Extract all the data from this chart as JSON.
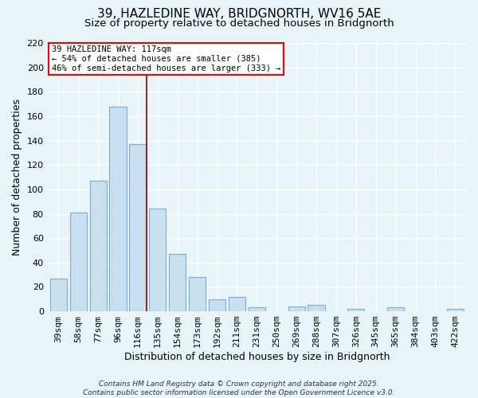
{
  "title": "39, HAZLEDINE WAY, BRIDGNORTH, WV16 5AE",
  "subtitle": "Size of property relative to detached houses in Bridgnorth",
  "xlabel": "Distribution of detached houses by size in Bridgnorth",
  "ylabel": "Number of detached properties",
  "categories": [
    "39sqm",
    "58sqm",
    "77sqm",
    "96sqm",
    "116sqm",
    "135sqm",
    "154sqm",
    "173sqm",
    "192sqm",
    "211sqm",
    "231sqm",
    "250sqm",
    "269sqm",
    "288sqm",
    "307sqm",
    "326sqm",
    "345sqm",
    "365sqm",
    "384sqm",
    "403sqm",
    "422sqm"
  ],
  "values": [
    27,
    81,
    107,
    168,
    137,
    84,
    47,
    28,
    10,
    12,
    3,
    0,
    4,
    5,
    0,
    2,
    0,
    3,
    0,
    0,
    2
  ],
  "bar_color": "#c8dff0",
  "bar_edge_color": "#7ab0cc",
  "vline_color": "#8b0000",
  "vline_x_index": 4,
  "annotation_box": {
    "text_line1": "39 HAZLEDINE WAY: 117sqm",
    "text_line2": "← 54% of detached houses are smaller (385)",
    "text_line3": "46% of semi-detached houses are larger (333) →",
    "box_color": "white",
    "box_edge_color": "red"
  },
  "footer_line1": "Contains HM Land Registry data © Crown copyright and database right 2025.",
  "footer_line2": "Contains public sector information licensed under the Open Government Licence v3.0.",
  "ylim": [
    0,
    220
  ],
  "yticks": [
    0,
    20,
    40,
    60,
    80,
    100,
    120,
    140,
    160,
    180,
    200,
    220
  ],
  "background_color": "#e8f4f8",
  "grid_color": "#ffffff",
  "title_fontsize": 11,
  "subtitle_fontsize": 9.5,
  "xlabel_fontsize": 9,
  "ylabel_fontsize": 9,
  "tick_fontsize": 8,
  "footer_fontsize": 6.5
}
